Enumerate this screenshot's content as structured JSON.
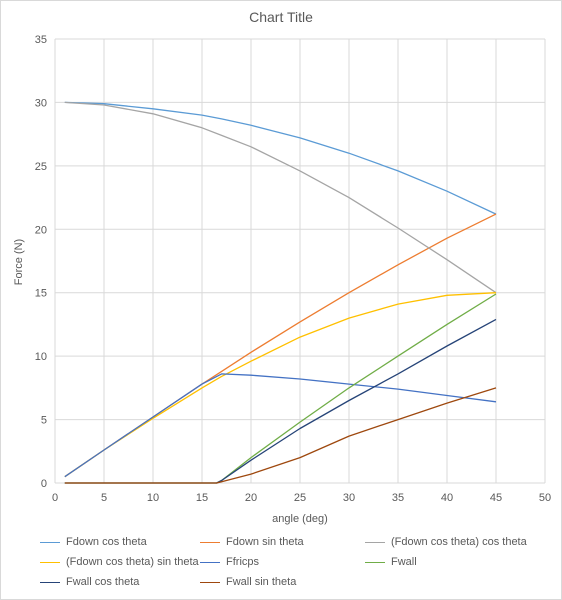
{
  "chart_data": {
    "type": "line",
    "title": "Chart Title",
    "xlabel": "angle (deg)",
    "ylabel": "Force (N)",
    "xlim": [
      0,
      50
    ],
    "ylim": [
      0,
      35
    ],
    "xticks": [
      0,
      5,
      10,
      15,
      20,
      25,
      30,
      35,
      40,
      45,
      50
    ],
    "yticks": [
      0,
      5,
      10,
      15,
      20,
      25,
      30,
      35
    ],
    "grid": "vertical-and-horizontal",
    "legend_position": "bottom",
    "series": [
      {
        "name": "Fdown cos theta",
        "color": "#5b9bd5",
        "x": [
          1,
          5,
          10,
          15,
          17,
          20,
          25,
          30,
          35,
          40,
          45
        ],
        "y": [
          30.0,
          29.9,
          29.5,
          29.0,
          28.7,
          28.2,
          27.2,
          26.0,
          24.6,
          23.0,
          21.2
        ]
      },
      {
        "name": "Fdown sin theta",
        "color": "#ed7d31",
        "x": [
          1,
          5,
          10,
          15,
          17,
          20,
          25,
          30,
          35,
          40,
          45
        ],
        "y": [
          0.5,
          2.6,
          5.2,
          7.8,
          8.8,
          10.3,
          12.7,
          15.0,
          17.2,
          19.3,
          21.2
        ]
      },
      {
        "name": "(Fdown cos theta) cos theta",
        "color": "#a5a5a5",
        "x": [
          1,
          5,
          10,
          15,
          17,
          20,
          25,
          30,
          35,
          40,
          45
        ],
        "y": [
          30.0,
          29.8,
          29.1,
          28.0,
          27.4,
          26.5,
          24.6,
          22.5,
          20.1,
          17.6,
          15.0
        ]
      },
      {
        "name": "(Fdown cos theta) sin theta",
        "color": "#ffc000",
        "x": [
          1,
          5,
          10,
          15,
          17,
          20,
          25,
          30,
          35,
          40,
          45
        ],
        "y": [
          0.5,
          2.6,
          5.1,
          7.5,
          8.4,
          9.6,
          11.5,
          13.0,
          14.1,
          14.8,
          15.0
        ]
      },
      {
        "name": "Ffricps",
        "color": "#4472c4",
        "x": [
          1,
          5,
          10,
          15,
          17,
          20,
          25,
          30,
          35,
          40,
          45
        ],
        "y": [
          0.5,
          2.6,
          5.2,
          7.8,
          8.6,
          8.5,
          8.2,
          7.8,
          7.4,
          6.9,
          6.4
        ]
      },
      {
        "name": "Fwall",
        "color": "#70ad47",
        "x": [
          1,
          10,
          16.5,
          17,
          20,
          25,
          30,
          35,
          40,
          45
        ],
        "y": [
          0,
          0,
          0,
          0.2,
          2.0,
          4.8,
          7.5,
          10.0,
          12.5,
          14.9
        ]
      },
      {
        "name": "Fwall cos theta",
        "color": "#264478",
        "x": [
          1,
          10,
          16.5,
          17,
          20,
          25,
          30,
          35,
          40,
          45
        ],
        "y": [
          0,
          0,
          0,
          0.2,
          1.8,
          4.3,
          6.5,
          8.6,
          10.8,
          12.9
        ]
      },
      {
        "name": "Fwall sin theta",
        "color": "#9e480e",
        "x": [
          1,
          10,
          16.5,
          17,
          20,
          25,
          30,
          35,
          40,
          45
        ],
        "y": [
          0,
          0,
          0,
          0.1,
          0.7,
          2.0,
          3.7,
          5.0,
          6.3,
          7.5
        ]
      }
    ]
  }
}
